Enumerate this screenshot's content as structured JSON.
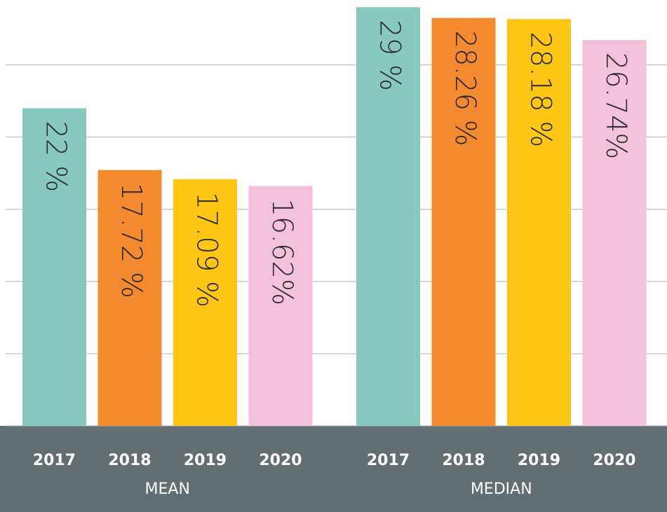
{
  "chart_data": {
    "type": "bar",
    "categories": [
      "2017",
      "2018",
      "2019",
      "2020"
    ],
    "colors": [
      "#88c9bf",
      "#f48a30",
      "#fdc614",
      "#f3c1d9"
    ],
    "series": [
      {
        "name": "MEAN",
        "values": [
          22,
          17.72,
          17.09,
          16.62
        ],
        "value_labels": [
          "22 %",
          "17.72 %",
          "17.09 %",
          "16.62%"
        ]
      },
      {
        "name": "MEDIAN",
        "values": [
          29,
          28.26,
          28.18,
          26.74
        ],
        "value_labels": [
          "29 %",
          "28.26 %",
          "28.18 %",
          "26.74%"
        ]
      }
    ],
    "ylim": [
      0,
      29.5
    ],
    "yticks": [
      0,
      5,
      10,
      15,
      20,
      25
    ],
    "grid": true
  }
}
